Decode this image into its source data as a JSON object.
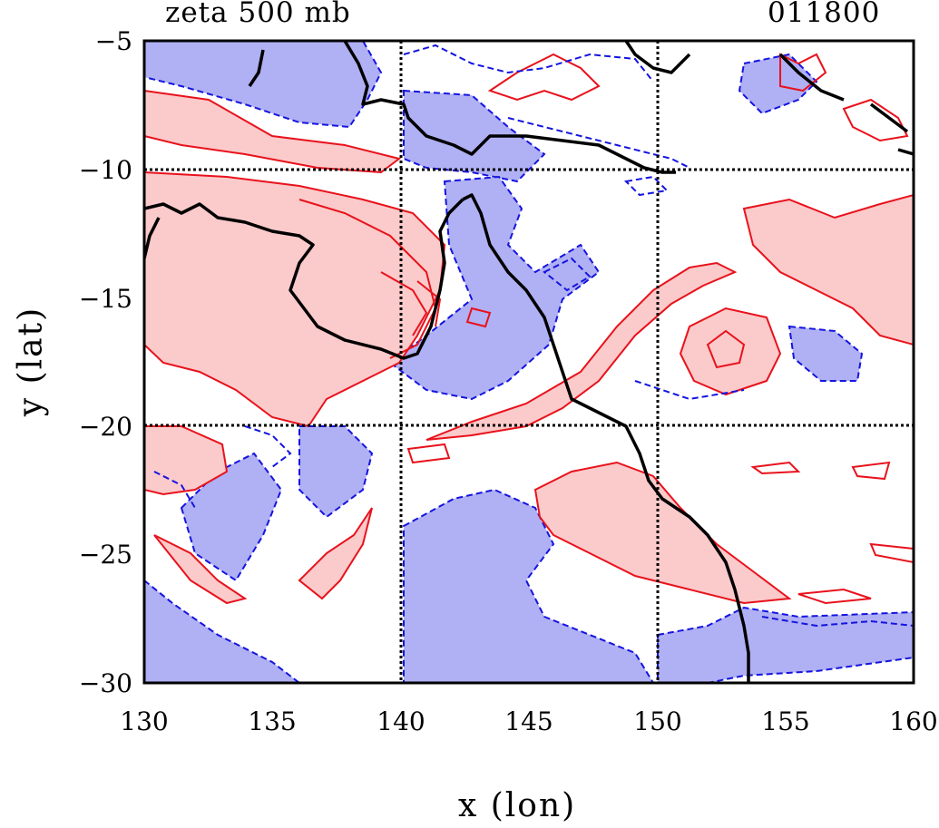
{
  "title_left": "zeta 500 mb",
  "title_right": "011800",
  "xlabel": "x (lon)",
  "ylabel": "y (lat)",
  "x_ticks": [
    "130",
    "135",
    "140",
    "145",
    "150",
    "155",
    "160"
  ],
  "y_ticks": [
    "−5",
    "−10",
    "−15",
    "−20",
    "−25",
    "−30"
  ],
  "axes": {
    "xlim": [
      130,
      160
    ],
    "ylim": [
      -30,
      -5
    ],
    "grid_lon": [
      140,
      150
    ],
    "grid_lat": [
      -10,
      -20
    ]
  },
  "colors": {
    "positive_fill": "#fbcaca",
    "positive_line": "#e8121c",
    "negative_fill": "#b0b0f4",
    "negative_line": "#1414e0",
    "coast": "#000000"
  },
  "legend": "none"
}
